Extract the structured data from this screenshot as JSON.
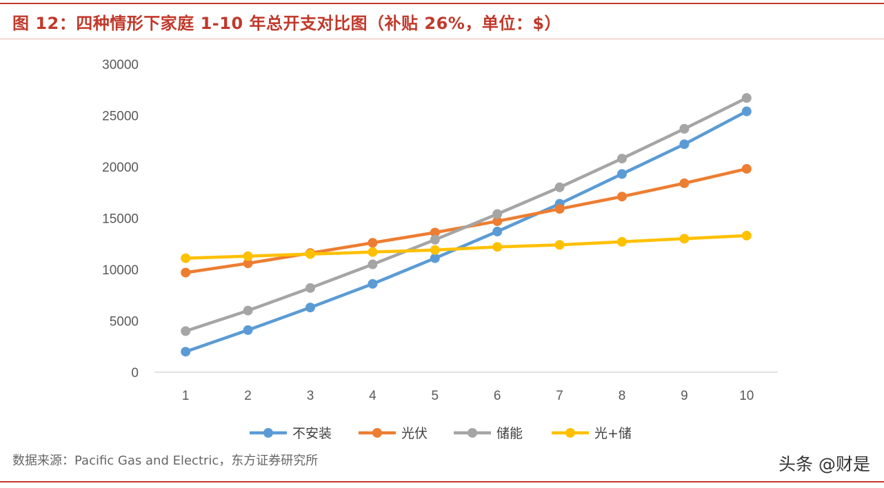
{
  "figure": {
    "title": "图 12：四种情形下家庭 1-10 年总开支对比图（补贴 26%，单位：$）",
    "source": "数据来源：Pacific Gas and Electric，东方证券研究所",
    "watermark": "头条 @财是"
  },
  "chart_data": {
    "type": "line",
    "title": "图 12：四种情形下家庭 1-10 年总开支对比图（补贴 26%，单位：$）",
    "xlabel": "",
    "ylabel": "",
    "categories": [
      "1",
      "2",
      "3",
      "4",
      "5",
      "6",
      "7",
      "8",
      "9",
      "10"
    ],
    "ylim": [
      0,
      30000
    ],
    "yticks": [
      0,
      5000,
      10000,
      15000,
      20000,
      25000,
      30000
    ],
    "grid": false,
    "legend": "bottom",
    "series": [
      {
        "name": "不安装",
        "color": "#5b9bd5",
        "values": [
          2000,
          4100,
          6300,
          8600,
          11100,
          13700,
          16400,
          19300,
          22200,
          25400
        ]
      },
      {
        "name": "光伏",
        "color": "#ed7d31",
        "values": [
          9700,
          10600,
          11600,
          12600,
          13600,
          14700,
          15900,
          17100,
          18400,
          19800
        ]
      },
      {
        "name": "储能",
        "color": "#a5a5a5",
        "values": [
          4000,
          6000,
          8200,
          10500,
          12900,
          15400,
          18000,
          20800,
          23700,
          26700
        ]
      },
      {
        "name": "光+储",
        "color": "#ffc000",
        "values": [
          11100,
          11300,
          11500,
          11700,
          11900,
          12200,
          12400,
          12700,
          13000,
          13300
        ]
      }
    ]
  }
}
